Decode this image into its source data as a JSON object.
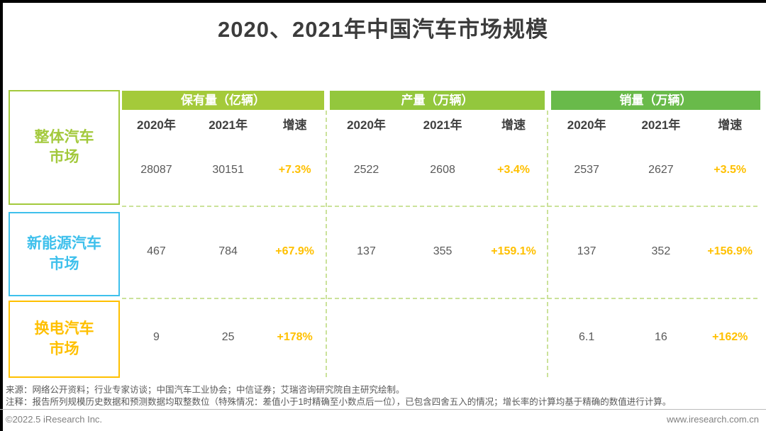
{
  "title": "2020、2021年中国汽车市场规模",
  "colors": {
    "group_ownership_header": "#a4ca3a",
    "group_production_header": "#93c73d",
    "group_sales_header": "#69ba4a",
    "row_overall": "#a3c93c",
    "row_nev": "#3ec0ec",
    "row_battery_swap": "#ffc000",
    "growth_text": "#ffc000",
    "value_text": "#595959",
    "dashed_grid": "#cbe29a"
  },
  "table": {
    "groups": [
      {
        "header": "保有量（亿辆）",
        "columns": [
          "2020年",
          "2021年",
          "增速"
        ]
      },
      {
        "header": "产量（万辆）",
        "columns": [
          "2020年",
          "2021年",
          "增速"
        ]
      },
      {
        "header": "销量（万辆）",
        "columns": [
          "2020年",
          "2021年",
          "增速"
        ]
      }
    ],
    "rows": [
      {
        "label": "整体汽车市场",
        "label_line1": "整体汽车",
        "label_line2": "市场",
        "cells": [
          [
            "28087",
            "30151",
            "+7.3%"
          ],
          [
            "2522",
            "2608",
            "+3.4%"
          ],
          [
            "2537",
            "2627",
            "+3.5%"
          ]
        ]
      },
      {
        "label": "新能源汽车市场",
        "label_line1": "新能源汽车",
        "label_line2": "市场",
        "cells": [
          [
            "467",
            "784",
            "+67.9%"
          ],
          [
            "137",
            "355",
            "+159.1%"
          ],
          [
            "137",
            "352",
            "+156.9%"
          ]
        ]
      },
      {
        "label": "换电汽车市场",
        "label_line1": "换电汽车",
        "label_line2": "市场",
        "cells": [
          [
            "9",
            "25",
            "+178%"
          ],
          [
            "",
            "",
            ""
          ],
          [
            "6.1",
            "16",
            "+162%"
          ]
        ]
      }
    ]
  },
  "footer": {
    "source": "来源：网络公开资料；行业专家访谈；中国汽车工业协会；中信证券；艾瑞咨询研究院自主研究绘制。",
    "note": "注释：报告所列规模历史数据和预测数据均取整数位（特殊情况：差值小于1时精确至小数点后一位），已包含四舍五入的情况；增长率的计算均基于精确的数值进行计算。",
    "copyright": "©2022.5 iResearch Inc.",
    "website": "www.iresearch.com.cn"
  },
  "chart_data": {
    "type": "table",
    "title": "2020、2021年中国汽车市场规模",
    "column_groups": [
      "保有量（亿辆）",
      "产量（万辆）",
      "销量（万辆）"
    ],
    "sub_columns": [
      "2020年",
      "2021年",
      "增速"
    ],
    "rows": [
      {
        "market": "整体汽车市场",
        "保有量": {
          "2020年": 28087,
          "2021年": 30151,
          "增速": "+7.3%"
        },
        "产量": {
          "2020年": 2522,
          "2021年": 2608,
          "增速": "+3.4%"
        },
        "销量": {
          "2020年": 2537,
          "2021年": 2627,
          "增速": "+3.5%"
        }
      },
      {
        "market": "新能源汽车市场",
        "保有量": {
          "2020年": 467,
          "2021年": 784,
          "增速": "+67.9%"
        },
        "产量": {
          "2020年": 137,
          "2021年": 355,
          "增速": "+159.1%"
        },
        "销量": {
          "2020年": 137,
          "2021年": 352,
          "增速": "+156.9%"
        }
      },
      {
        "market": "换电汽车市场",
        "保有量": {
          "2020年": 9,
          "2021年": 25,
          "增速": "+178%"
        },
        "产量": {
          "2020年": null,
          "2021年": null,
          "增速": null
        },
        "销量": {
          "2020年": 6.1,
          "2021年": 16,
          "增速": "+162%"
        }
      }
    ]
  }
}
